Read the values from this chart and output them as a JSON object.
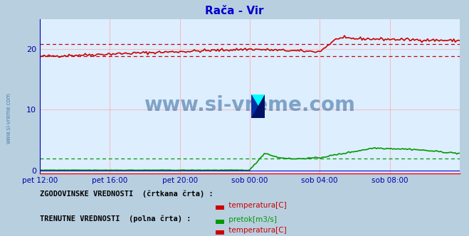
{
  "title": "Rača - Vir",
  "title_color": "#0000cc",
  "plot_bg_color": "#ddeeff",
  "outer_bg_color": "#b8cfe0",
  "grid_color": "#ffaaaa",
  "tick_color": "#0000aa",
  "ylabel_ticks": [
    0,
    10,
    20
  ],
  "ylim": [
    -0.5,
    25
  ],
  "xlim": [
    0,
    288
  ],
  "xtick_labels": [
    "pet 12:00",
    "pet 16:00",
    "pet 20:00",
    "sob 00:00",
    "sob 04:00",
    "sob 08:00"
  ],
  "xtick_positions": [
    0,
    48,
    96,
    144,
    192,
    240
  ],
  "watermark_text": "www.si-vreme.com",
  "watermark_color": "#336699",
  "legend_hist_label": "ZGODOVINSKE VREDNOSTI  (črtkana črta) :",
  "legend_curr_label": "TRENUTNE VREDNOSTI  (polna črta) :",
  "legend_temp_label": " temperatura[C]",
  "legend_flow_label": " pretok[m3/s]",
  "temp_color": "#cc0000",
  "flow_color": "#009900",
  "n_points": 289
}
